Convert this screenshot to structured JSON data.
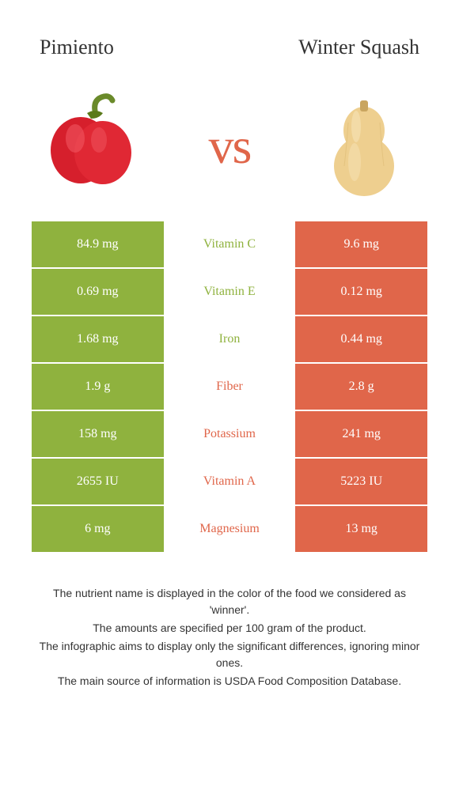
{
  "header": {
    "left_title": "Pimiento",
    "right_title": "Winter Squash",
    "vs_text": "vs"
  },
  "colors": {
    "green": "#8fb23e",
    "orange": "#e0664a",
    "row_border": "#ffffff"
  },
  "nutrients": [
    {
      "name": "Vitamin C",
      "left": "84.9 mg",
      "right": "9.6 mg",
      "winner": "left"
    },
    {
      "name": "Vitamin E",
      "left": "0.69 mg",
      "right": "0.12 mg",
      "winner": "left"
    },
    {
      "name": "Iron",
      "left": "1.68 mg",
      "right": "0.44 mg",
      "winner": "left"
    },
    {
      "name": "Fiber",
      "left": "1.9 g",
      "right": "2.8 g",
      "winner": "right"
    },
    {
      "name": "Potassium",
      "left": "158 mg",
      "right": "241 mg",
      "winner": "right"
    },
    {
      "name": "Vitamin A",
      "left": "2655 IU",
      "right": "5223 IU",
      "winner": "right"
    },
    {
      "name": "Magnesium",
      "left": "6 mg",
      "right": "13 mg",
      "winner": "right"
    }
  ],
  "footer": {
    "line1": "The nutrient name is displayed in the color of the food we considered as 'winner'.",
    "line2": "The amounts are specified per 100 gram of the product.",
    "line3": "The infographic aims to display only the significant differences, ignoring minor ones.",
    "line4": "The main source of information is USDA Food Composition Database."
  }
}
